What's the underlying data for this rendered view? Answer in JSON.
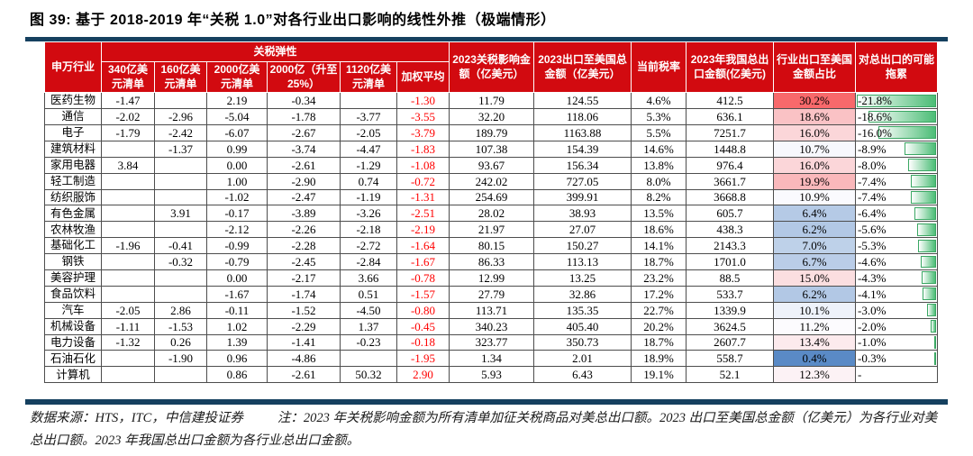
{
  "title": "图 39:  基于 2018-2019 年“关税 1.0”对各行业出口影响的线性外推（极端情形）",
  "colors": {
    "header_bg": "#D20A10",
    "header_text": "#FFFFFF",
    "accent_rule": "#15405F",
    "weighted_text": "#FF0000",
    "share_scale_min": "#5A8AC6",
    "share_scale_mid": "#FCFCFF",
    "share_scale_max": "#F8696B",
    "drag_bar_fill": "#4CBD76",
    "drag_bar_border": "#3AA763"
  },
  "table": {
    "industry_header": "申万行业",
    "elasticity_group_header": "关税弹性",
    "elasticity_headers": [
      "340亿美元清单",
      "160亿美元清单",
      "2000亿美元清单",
      "2000亿（升至25%）",
      "1120亿美元清单",
      "加权平均"
    ],
    "stat_headers": [
      "2023关税影响金额（亿美元）",
      "2023出口至美国总金额（亿美元）",
      "当前税率",
      "2023年我国总出口金额(亿美元)",
      "行业出口至美国金额占比",
      "对总出口的可能拖累"
    ],
    "rows": [
      [
        "医药生物",
        "-1.47",
        "",
        "2.19",
        "-0.34",
        "",
        "-1.30",
        "11.79",
        "124.55",
        "4.6%",
        "412.5",
        "30.2%",
        "-21.8%"
      ],
      [
        "通信",
        "-2.02",
        "-2.96",
        "-5.04",
        "-1.78",
        "-3.77",
        "-3.55",
        "32.20",
        "118.06",
        "5.3%",
        "636.1",
        "18.6%",
        "-18.6%"
      ],
      [
        "电子",
        "-1.79",
        "-2.42",
        "-6.07",
        "-2.67",
        "-2.05",
        "-3.79",
        "189.79",
        "1163.88",
        "5.5%",
        "7251.7",
        "16.0%",
        "-16.0%"
      ],
      [
        "建筑材料",
        "",
        "-1.37",
        "0.99",
        "-3.74",
        "-4.47",
        "-1.83",
        "107.38",
        "154.39",
        "14.6%",
        "1448.8",
        "10.7%",
        "-8.9%"
      ],
      [
        "家用电器",
        "3.84",
        "",
        "0.00",
        "-2.61",
        "-1.29",
        "-1.08",
        "93.67",
        "156.34",
        "13.8%",
        "976.4",
        "16.0%",
        "-8.0%"
      ],
      [
        "轻工制造",
        "",
        "",
        "1.00",
        "-2.90",
        "0.74",
        "-0.72",
        "242.02",
        "727.05",
        "8.0%",
        "3661.7",
        "19.9%",
        "-7.4%"
      ],
      [
        "纺织服饰",
        "",
        "",
        "-1.02",
        "-2.47",
        "-1.19",
        "-1.31",
        "254.69",
        "399.91",
        "8.2%",
        "3668.8",
        "10.9%",
        "-7.4%"
      ],
      [
        "有色金属",
        "",
        "3.91",
        "-0.17",
        "-3.89",
        "-3.26",
        "-2.51",
        "28.02",
        "38.93",
        "13.5%",
        "605.7",
        "6.4%",
        "-6.4%"
      ],
      [
        "农林牧渔",
        "",
        "",
        "-2.12",
        "-2.26",
        "-2.18",
        "-2.19",
        "21.97",
        "27.07",
        "18.6%",
        "438.3",
        "6.2%",
        "-5.6%"
      ],
      [
        "基础化工",
        "-1.96",
        "-0.41",
        "-0.99",
        "-2.28",
        "-2.72",
        "-1.64",
        "80.15",
        "150.27",
        "14.1%",
        "2143.3",
        "7.0%",
        "-5.3%"
      ],
      [
        "钢铁",
        "",
        "-0.32",
        "-0.79",
        "-2.45",
        "-2.84",
        "-1.67",
        "86.33",
        "113.13",
        "18.7%",
        "1701.0",
        "6.7%",
        "-4.6%"
      ],
      [
        "美容护理",
        "",
        "",
        "0.00",
        "-2.17",
        "3.66",
        "-0.78",
        "12.99",
        "13.25",
        "23.2%",
        "88.5",
        "15.0%",
        "-4.3%"
      ],
      [
        "食品饮料",
        "",
        "",
        "-1.67",
        "-1.74",
        "0.51",
        "-1.57",
        "27.79",
        "32.86",
        "17.2%",
        "533.7",
        "6.2%",
        "-4.1%"
      ],
      [
        "汽车",
        "-2.05",
        "2.86",
        "-0.11",
        "-1.52",
        "-4.50",
        "-0.80",
        "113.71",
        "135.35",
        "22.7%",
        "1339.9",
        "10.1%",
        "-3.0%"
      ],
      [
        "机械设备",
        "-1.11",
        "-1.53",
        "1.02",
        "-2.29",
        "1.37",
        "-0.45",
        "340.23",
        "405.40",
        "20.2%",
        "3624.5",
        "11.2%",
        "-2.0%"
      ],
      [
        "电力设备",
        "-1.32",
        "0.26",
        "1.39",
        "-1.41",
        "-0.23",
        "-0.18",
        "323.77",
        "350.73",
        "18.7%",
        "2607.7",
        "13.4%",
        "-1.0%"
      ],
      [
        "石油石化",
        "",
        "-1.90",
        "0.96",
        "-4.86",
        "",
        "-1.95",
        "1.34",
        "2.01",
        "18.9%",
        "558.7",
        "0.4%",
        "-0.3%"
      ],
      [
        "计算机",
        "",
        "",
        "0.86",
        "-2.61",
        "50.32",
        "2.90",
        "5.93",
        "6.43",
        "19.1%",
        "52.1",
        "12.3%",
        "-"
      ]
    ]
  },
  "footer": {
    "source": "数据来源：HTS，ITC，中信建投证券",
    "note": "注：2023 年关税影响金额为所有清单加征关税商品对美总出口额。2023 出口至美国总金额（亿美元）为各行业对美总出口额。2023 年我国总出口金额为各行业总出口金额。"
  }
}
